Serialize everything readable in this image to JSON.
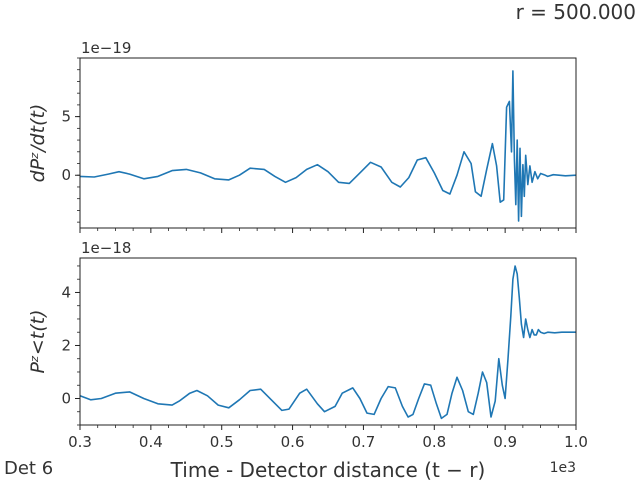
{
  "figure": {
    "corner_title": "r = 500.000",
    "xlabel": "Time - Detector distance (t − r)",
    "x_offset": "1e3",
    "detector_label": "Det 6"
  },
  "colors": {
    "line": "#1f77b4",
    "axes": "#222222",
    "text": "#333333"
  },
  "chart_data": [
    {
      "type": "line",
      "panel": "top",
      "ylabel": "dPᶻ/dt(t)",
      "y_offset": "1e−19",
      "xlim": [
        0.3,
        1.0
      ],
      "ylim": [
        -4.5,
        10
      ],
      "xticks": [
        0.3,
        0.4,
        0.5,
        0.6,
        0.7,
        0.8,
        0.9,
        1.0
      ],
      "xtick_labels": [
        "",
        "",
        "",
        "",
        "",
        "",
        "",
        ""
      ],
      "yticks": [
        0,
        5
      ],
      "ytick_labels": [
        "0",
        "5"
      ],
      "grid": false,
      "series": [
        {
          "x": [
            0.3,
            0.32,
            0.34,
            0.355,
            0.37,
            0.39,
            0.41,
            0.43,
            0.45,
            0.47,
            0.49,
            0.51,
            0.525,
            0.54,
            0.56,
            0.575,
            0.59,
            0.605,
            0.62,
            0.635,
            0.65,
            0.665,
            0.68,
            0.695,
            0.71,
            0.725,
            0.74,
            0.752,
            0.764,
            0.776,
            0.788,
            0.8,
            0.812,
            0.822,
            0.832,
            0.842,
            0.852,
            0.858,
            0.866,
            0.874,
            0.882,
            0.888,
            0.893,
            0.898,
            0.902,
            0.906,
            0.909,
            0.911,
            0.913,
            0.915,
            0.917,
            0.919,
            0.921,
            0.923,
            0.925,
            0.927,
            0.929,
            0.932,
            0.935,
            0.938,
            0.942,
            0.946,
            0.95,
            0.955,
            0.96,
            0.968,
            0.976,
            0.985,
            1.0
          ],
          "y": [
            -0.1,
            -0.15,
            0.1,
            0.3,
            0.1,
            -0.3,
            -0.1,
            0.4,
            0.5,
            0.2,
            -0.3,
            -0.4,
            0.0,
            0.6,
            0.5,
            -0.1,
            -0.6,
            -0.2,
            0.5,
            0.9,
            0.3,
            -0.6,
            -0.7,
            0.2,
            1.1,
            0.7,
            -0.6,
            -1.0,
            -0.2,
            1.3,
            1.5,
            0.2,
            -1.3,
            -1.6,
            0.0,
            2.0,
            1.0,
            -1.4,
            -1.8,
            0.5,
            2.7,
            0.8,
            -2.3,
            -2.1,
            5.8,
            6.3,
            2.0,
            8.9,
            1.4,
            -2.5,
            3.0,
            -3.9,
            2.3,
            -3.5,
            0.9,
            -1.8,
            1.7,
            -0.8,
            0.8,
            -0.6,
            0.3,
            -0.3,
            0.15,
            0.05,
            -0.1,
            0.05,
            0.0,
            -0.05,
            0.0
          ]
        }
      ]
    },
    {
      "type": "line",
      "panel": "bottom",
      "ylabel": "Pᶻ<t(t)",
      "y_offset": "1e−18",
      "xlim": [
        0.3,
        1.0
      ],
      "ylim": [
        -1.0,
        5.3
      ],
      "xticks": [
        0.3,
        0.4,
        0.5,
        0.6,
        0.7,
        0.8,
        0.9,
        1.0
      ],
      "xtick_labels": [
        "0.3",
        "0.4",
        "0.5",
        "0.6",
        "0.7",
        "0.8",
        "0.9",
        "1.0"
      ],
      "yticks": [
        0,
        2,
        4
      ],
      "ytick_labels": [
        "0",
        "2",
        "4"
      ],
      "grid": false,
      "series": [
        {
          "x": [
            0.3,
            0.315,
            0.33,
            0.35,
            0.37,
            0.39,
            0.41,
            0.43,
            0.44,
            0.455,
            0.465,
            0.48,
            0.495,
            0.51,
            0.525,
            0.54,
            0.555,
            0.57,
            0.585,
            0.595,
            0.61,
            0.62,
            0.635,
            0.645,
            0.66,
            0.67,
            0.685,
            0.695,
            0.705,
            0.715,
            0.725,
            0.735,
            0.745,
            0.755,
            0.763,
            0.77,
            0.778,
            0.786,
            0.795,
            0.803,
            0.81,
            0.818,
            0.825,
            0.832,
            0.84,
            0.848,
            0.855,
            0.862,
            0.868,
            0.874,
            0.88,
            0.886,
            0.891,
            0.896,
            0.9,
            0.904,
            0.908,
            0.911,
            0.914,
            0.917,
            0.92,
            0.923,
            0.926,
            0.929,
            0.932,
            0.935,
            0.938,
            0.941,
            0.944,
            0.947,
            0.95,
            0.955,
            0.96,
            0.97,
            0.98,
            1.0
          ],
          "y": [
            0.1,
            -0.05,
            0.0,
            0.2,
            0.25,
            0.0,
            -0.2,
            -0.25,
            -0.1,
            0.2,
            0.3,
            0.1,
            -0.25,
            -0.35,
            -0.05,
            0.3,
            0.35,
            -0.05,
            -0.45,
            -0.4,
            0.2,
            0.35,
            -0.2,
            -0.5,
            -0.3,
            0.2,
            0.4,
            0.0,
            -0.55,
            -0.6,
            0.0,
            0.45,
            0.4,
            -0.3,
            -0.7,
            -0.6,
            0.0,
            0.55,
            0.5,
            -0.2,
            -0.75,
            -0.6,
            0.2,
            0.8,
            0.3,
            -0.5,
            -0.6,
            0.2,
            1.0,
            0.6,
            -0.7,
            -0.1,
            1.5,
            0.5,
            0.0,
            1.5,
            3.1,
            4.5,
            5.0,
            4.7,
            3.8,
            2.8,
            2.3,
            3.0,
            2.6,
            2.3,
            2.6,
            2.4,
            2.4,
            2.6,
            2.5,
            2.45,
            2.5,
            2.48,
            2.5,
            2.5
          ]
        }
      ]
    }
  ]
}
